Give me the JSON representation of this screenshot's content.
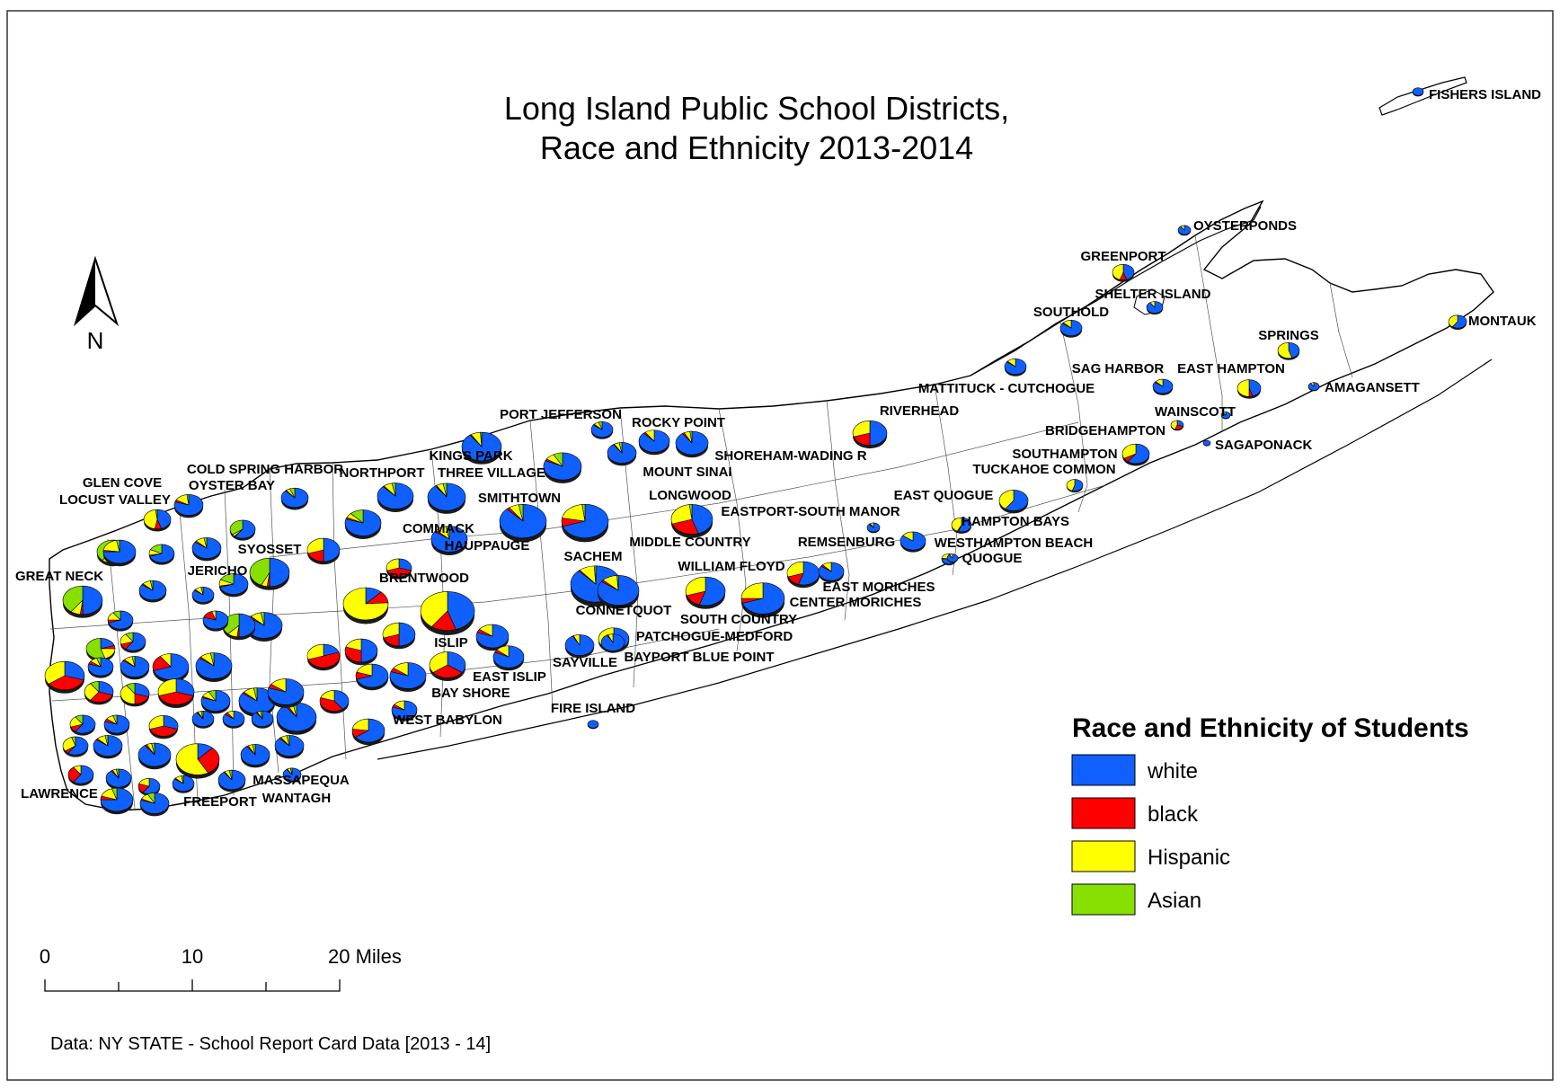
{
  "title_lines": [
    "Long Island Public School Districts,",
    "Race and Ethnicity 2013-2014"
  ],
  "north_label": "N",
  "legend": {
    "title": "Race and Ethnicity of Students",
    "items": [
      {
        "label": "white",
        "color": "#1060ff"
      },
      {
        "label": "black",
        "color": "#ff0000"
      },
      {
        "label": "Hispanic",
        "color": "#ffff00"
      },
      {
        "label": "Asian",
        "color": "#88e000"
      }
    ]
  },
  "scale": {
    "ticks": [
      "0",
      "10",
      "20 Miles"
    ]
  },
  "source": "Data: NY STATE - School Report Card Data [2013 - 14]",
  "districts": [
    {
      "name": "FISHERS ISLAND",
      "w": 1,
      "b": 0,
      "h": 0,
      "a": 0
    },
    {
      "name": "OYSTERPONDS",
      "w": 0.9,
      "b": 0,
      "h": 0.1,
      "a": 0
    },
    {
      "name": "GREENPORT",
      "w": 0.45,
      "b": 0.1,
      "h": 0.45,
      "a": 0
    },
    {
      "name": "SHELTER ISLAND",
      "w": 0.9,
      "b": 0,
      "h": 0.1,
      "a": 0
    },
    {
      "name": "SOUTHOLD",
      "w": 0.85,
      "b": 0.02,
      "h": 0.13,
      "a": 0
    },
    {
      "name": "MONTAUK",
      "w": 0.6,
      "b": 0,
      "h": 0.4,
      "a": 0
    },
    {
      "name": "SPRINGS",
      "w": 0.45,
      "b": 0,
      "h": 0.55,
      "a": 0
    },
    {
      "name": "SAG HARBOR",
      "w": 0.85,
      "b": 0.02,
      "h": 0.13,
      "a": 0
    },
    {
      "name": "EAST HAMPTON",
      "w": 0.45,
      "b": 0.05,
      "h": 0.5,
      "a": 0
    },
    {
      "name": "AMAGANSETT",
      "w": 0.9,
      "b": 0,
      "h": 0.1,
      "a": 0
    },
    {
      "name": "MATTITUCK - CUTCHOGUE",
      "w": 0.85,
      "b": 0.02,
      "h": 0.13,
      "a": 0
    },
    {
      "name": "WAINSCOTT",
      "w": 0.9,
      "b": 0,
      "h": 0.1,
      "a": 0
    },
    {
      "name": "RIVERHEAD",
      "w": 0.5,
      "b": 0.2,
      "h": 0.3,
      "a": 0
    },
    {
      "name": "BRIDGEHAMPTON",
      "w": 0.3,
      "b": 0.25,
      "h": 0.45,
      "a": 0
    },
    {
      "name": "SAGAPONACK",
      "w": 1,
      "b": 0,
      "h": 0,
      "a": 0
    },
    {
      "name": "SOUTHAMPTON",
      "w": 0.6,
      "b": 0.07,
      "h": 0.33,
      "a": 0
    },
    {
      "name": "TUCKAHOE COMMON",
      "w": 0.55,
      "b": 0,
      "h": 0.45,
      "a": 0
    },
    {
      "name": "PORT JEFFERSON",
      "w": 0.85,
      "b": 0.02,
      "h": 0.08,
      "a": 0.05
    },
    {
      "name": "ROCKY POINT",
      "w": 0.88,
      "b": 0.02,
      "h": 0.1,
      "a": 0
    },
    {
      "name": "SHOREHAM-WADING R",
      "w": 0.9,
      "b": 0.02,
      "h": 0.06,
      "a": 0.02
    },
    {
      "name": "MOUNT SINAI",
      "w": 0.9,
      "b": 0.01,
      "h": 0.06,
      "a": 0.03
    },
    {
      "name": "KINGS PARK",
      "w": 0.9,
      "b": 0.01,
      "h": 0.08,
      "a": 0.01
    },
    {
      "name": "THREE VILLAGE",
      "w": 0.82,
      "b": 0.02,
      "h": 0.08,
      "a": 0.08
    },
    {
      "name": "SMITHTOWN",
      "w": 0.9,
      "b": 0.01,
      "h": 0.06,
      "a": 0.03
    },
    {
      "name": "NORTHPORT",
      "w": 0.88,
      "b": 0.01,
      "h": 0.08,
      "a": 0.03
    },
    {
      "name": "COLD SPRING HARBOR",
      "w": 0.88,
      "b": 0.01,
      "h": 0.05,
      "a": 0.06
    },
    {
      "name": "OYSTER BAY",
      "w": 0.8,
      "b": 0.03,
      "h": 0.15,
      "a": 0.02
    },
    {
      "name": "GLEN COVE",
      "w": 0.45,
      "b": 0.08,
      "h": 0.45,
      "a": 0.02
    },
    {
      "name": "LOCUST VALLEY",
      "w": 0.75,
      "b": 0.02,
      "h": 0.2,
      "a": 0.03
    },
    {
      "name": "LONGWOOD",
      "w": 0.45,
      "b": 0.25,
      "h": 0.28,
      "a": 0.02
    },
    {
      "name": "EASTPORT-SOUTH MANOR",
      "w": 0.88,
      "b": 0.03,
      "h": 0.09,
      "a": 0
    },
    {
      "name": "EAST QUOGUE",
      "w": 0.6,
      "b": 0,
      "h": 0.4,
      "a": 0
    },
    {
      "name": "HAMPTON BAYS",
      "w": 0.55,
      "b": 0.02,
      "h": 0.43,
      "a": 0
    },
    {
      "name": "COMMACK",
      "w": 0.8,
      "b": 0.02,
      "h": 0.06,
      "a": 0.12
    },
    {
      "name": "HAUPPAUGE",
      "w": 0.88,
      "b": 0.02,
      "h": 0.07,
      "a": 0.03
    },
    {
      "name": "MIDDLE COUNTRY",
      "w": 0.7,
      "b": 0.08,
      "h": 0.2,
      "a": 0.02
    },
    {
      "name": "REMSENBURG",
      "w": 0.85,
      "b": 0,
      "h": 0.15,
      "a": 0
    },
    {
      "name": "WESTHAMPTON BEACH",
      "w": 0.75,
      "b": 0.02,
      "h": 0.23,
      "a": 0
    },
    {
      "name": "QUOGUE",
      "w": 0.9,
      "b": 0,
      "h": 0.1,
      "a": 0
    },
    {
      "name": "SYOSSET",
      "w": 0.6,
      "b": 0.01,
      "h": 0.04,
      "a": 0.35
    },
    {
      "name": "JERICHO",
      "w": 0.5,
      "b": 0.02,
      "h": 0.05,
      "a": 0.43
    },
    {
      "name": "SACHEM",
      "w": 0.88,
      "b": 0.01,
      "h": 0.1,
      "a": 0.01
    },
    {
      "name": "WILLIAM FLOYD",
      "w": 0.55,
      "b": 0.15,
      "h": 0.3,
      "a": 0
    },
    {
      "name": "EAST MORICHES",
      "w": 0.85,
      "b": 0.03,
      "h": 0.12,
      "a": 0
    },
    {
      "name": "CENTER MORICHES",
      "w": 0.7,
      "b": 0.05,
      "h": 0.25,
      "a": 0
    },
    {
      "name": "GREAT NECK",
      "w": 0.5,
      "b": 0.02,
      "h": 0.08,
      "a": 0.4
    },
    {
      "name": "BRENTWOOD",
      "w": 0.12,
      "b": 0.12,
      "h": 0.76,
      "a": 0
    },
    {
      "name": "CONNETQUOT",
      "w": 0.85,
      "b": 0.02,
      "h": 0.12,
      "a": 0.01
    },
    {
      "name": "SOUTH COUNTRY",
      "w": 0.55,
      "b": 0.15,
      "h": 0.3,
      "a": 0
    },
    {
      "name": "ISLIP",
      "w": 0.45,
      "b": 0.15,
      "h": 0.4,
      "a": 0
    },
    {
      "name": "PATCHOGUE-MEDFORD",
      "w": 0.5,
      "b": 0.05,
      "h": 0.45,
      "a": 0
    },
    {
      "name": "SAYVILLE",
      "w": 0.92,
      "b": 0.01,
      "h": 0.07,
      "a": 0
    },
    {
      "name": "BAYPORT BLUE POINT",
      "w": 0.92,
      "b": 0.01,
      "h": 0.07,
      "a": 0
    },
    {
      "name": "EAST ISLIP",
      "w": 0.82,
      "b": 0.04,
      "h": 0.14,
      "a": 0
    },
    {
      "name": "BAY SHORE",
      "w": 0.35,
      "b": 0.3,
      "h": 0.35,
      "a": 0
    },
    {
      "name": "WEST BABYLON",
      "w": 0.65,
      "b": 0.12,
      "h": 0.23,
      "a": 0
    },
    {
      "name": "FIRE ISLAND",
      "w": 1,
      "b": 0,
      "h": 0,
      "a": 0
    },
    {
      "name": "MASSAPEQUA",
      "w": 0.9,
      "b": 0.01,
      "h": 0.06,
      "a": 0.03
    },
    {
      "name": "WANTAGH",
      "w": 0.9,
      "b": 0.01,
      "h": 0.06,
      "a": 0.03
    },
    {
      "name": "FREEPORT",
      "w": 0.12,
      "b": 0.3,
      "h": 0.58,
      "a": 0
    },
    {
      "name": "LAWRENCE",
      "w": 0.75,
      "b": 0.05,
      "h": 0.15,
      "a": 0.05
    }
  ]
}
